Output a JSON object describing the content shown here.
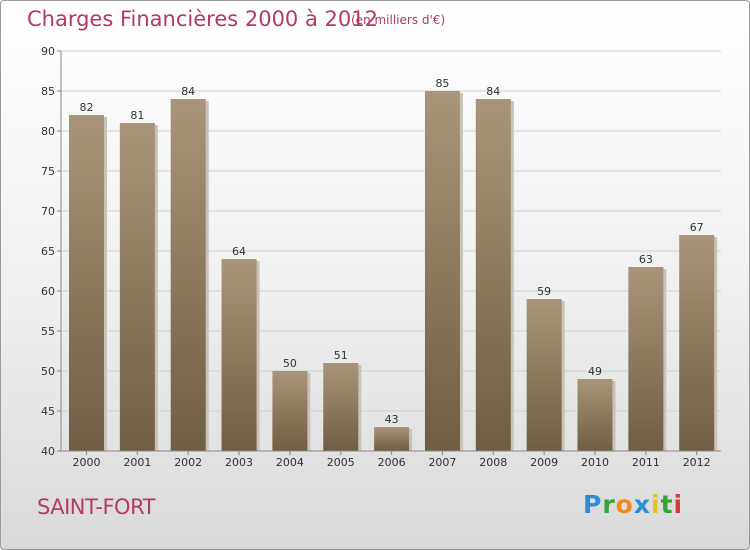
{
  "header": {
    "title": "Charges Financières 2000 à 2012",
    "subtitle": "(en milliers d'€)"
  },
  "footer": {
    "commune": "SAINT-FORT",
    "logo_letters": [
      {
        "ch": "P",
        "color": "#2a8fd6"
      },
      {
        "ch": "r",
        "color": "#3aa23a"
      },
      {
        "ch": "o",
        "color": "#f08a1c"
      },
      {
        "ch": "x",
        "color": "#2a8fd6"
      },
      {
        "ch": "i",
        "color": "#e6c21f"
      },
      {
        "ch": "t",
        "color": "#3aa23a"
      },
      {
        "ch": "i",
        "color": "#d63a3a"
      }
    ]
  },
  "colors": {
    "bar_top": "#a8957a",
    "bar_bottom": "#6f5e43",
    "bar_shadow": "#c9c2b6",
    "grid": "#cfcfcf",
    "axis": "#888888"
  },
  "chart_data": {
    "type": "bar",
    "categories": [
      "2000",
      "2001",
      "2002",
      "2003",
      "2004",
      "2005",
      "2006",
      "2007",
      "2008",
      "2009",
      "2010",
      "2011",
      "2012"
    ],
    "values": [
      82,
      81,
      84,
      64,
      50,
      51,
      43,
      85,
      84,
      59,
      49,
      63,
      67
    ],
    "ylim": [
      40,
      90
    ],
    "yticks": [
      40,
      45,
      50,
      55,
      60,
      65,
      70,
      75,
      80,
      85,
      90
    ],
    "grid": true,
    "legend": "none"
  }
}
